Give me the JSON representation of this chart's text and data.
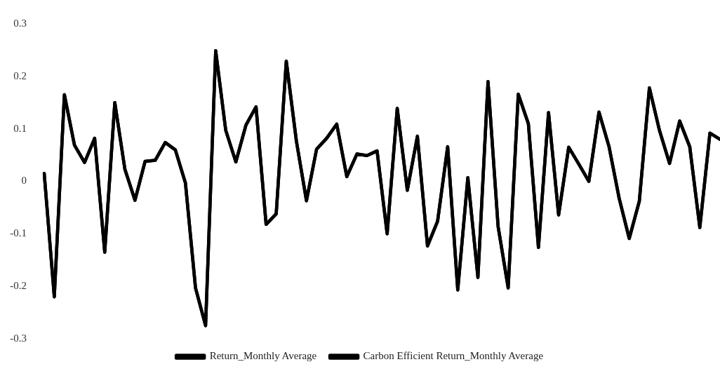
{
  "chart_data": {
    "type": "line",
    "categories": [
      null,
      null,
      null,
      null,
      null,
      null,
      null,
      null,
      null,
      null,
      null,
      null,
      null,
      null,
      null,
      null,
      null,
      null,
      null,
      null,
      null,
      null,
      null,
      null,
      null,
      null,
      null,
      null,
      null,
      null,
      null,
      null,
      null,
      null,
      null,
      null,
      null,
      null,
      null,
      null,
      null,
      null,
      null,
      null,
      null,
      null,
      null,
      null,
      null,
      null,
      null,
      null,
      null,
      null,
      null,
      null,
      null,
      null,
      null,
      null,
      null,
      null,
      null,
      null,
      null,
      null,
      null,
      null
    ],
    "series": [
      {
        "name": "Return_Monthly Average",
        "color": "#000000",
        "values": [
          0.015,
          -0.22,
          0.165,
          0.069,
          0.036,
          0.082,
          -0.135,
          0.15,
          0.023,
          -0.036,
          0.038,
          0.04,
          0.074,
          0.06,
          -0.003,
          -0.203,
          -0.275,
          0.249,
          0.097,
          0.037,
          0.107,
          0.142,
          -0.082,
          -0.062,
          0.229,
          0.077,
          -0.037,
          0.061,
          0.082,
          0.109,
          0.009,
          0.052,
          0.049,
          0.058,
          -0.1,
          0.139,
          -0.017,
          0.086,
          -0.123,
          -0.076,
          0.066,
          -0.207,
          0.007,
          -0.183,
          0.19,
          -0.086,
          -0.203,
          0.166,
          0.11,
          -0.126,
          0.131,
          -0.064,
          0.065,
          0.033,
          0.0,
          0.132,
          0.066,
          -0.032,
          -0.109,
          -0.038,
          0.178,
          0.097,
          0.034,
          0.115,
          0.066,
          -0.088,
          0.092,
          0.08
        ]
      },
      {
        "name": "Carbon Efficient Return_Monthly Average",
        "color": "#000000",
        "values": [
          0.015,
          -0.22,
          0.165,
          0.069,
          0.036,
          0.082,
          -0.135,
          0.15,
          0.023,
          -0.036,
          0.038,
          0.04,
          0.074,
          0.06,
          -0.003,
          -0.203,
          -0.275,
          0.249,
          0.097,
          0.037,
          0.107,
          0.142,
          -0.082,
          -0.062,
          0.229,
          0.077,
          -0.037,
          0.061,
          0.082,
          0.109,
          0.009,
          0.052,
          0.049,
          0.058,
          -0.1,
          0.139,
          -0.017,
          0.086,
          -0.123,
          -0.076,
          0.066,
          -0.207,
          0.007,
          -0.183,
          0.19,
          -0.086,
          -0.203,
          0.166,
          0.11,
          -0.126,
          0.131,
          -0.064,
          0.065,
          0.033,
          0.0,
          0.132,
          0.066,
          -0.032,
          -0.109,
          -0.038,
          0.178,
          0.097,
          0.034,
          0.115,
          0.066,
          -0.088,
          0.092,
          0.08
        ]
      }
    ],
    "ylim": [
      -0.3,
      0.3
    ],
    "yticks": [
      -0.3,
      -0.2,
      -0.1,
      0,
      0.1,
      0.2,
      0.3
    ],
    "tick_labels": "y",
    "legend": "bottom",
    "marker": "none"
  }
}
